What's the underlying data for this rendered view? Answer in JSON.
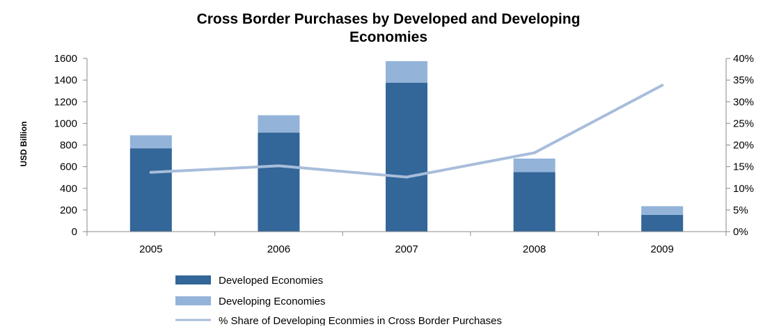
{
  "chart_data": {
    "type": "bar",
    "stacked": true,
    "title_line1": "Cross Border Purchases by Developed and Developing",
    "title_line2": "Economies",
    "ylabel": "USD Billion",
    "categories": [
      "2005",
      "2006",
      "2007",
      "2008",
      "2009"
    ],
    "ylim": [
      0,
      1600
    ],
    "yticks": [
      "0",
      "200",
      "400",
      "600",
      "800",
      "1000",
      "1200",
      "1400",
      "1600"
    ],
    "y2lim": [
      0,
      40
    ],
    "y2ticks": [
      "0%",
      "5%",
      "10%",
      "15%",
      "20%",
      "25%",
      "30%",
      "35%",
      "40%"
    ],
    "series": [
      {
        "name": "Developed Economies",
        "type": "bar",
        "axis": "left",
        "values": [
          770,
          915,
          1375,
          550,
          155
        ],
        "color": "#336699"
      },
      {
        "name": "Developing Economies",
        "type": "bar",
        "axis": "left",
        "values": [
          120,
          160,
          200,
          125,
          80
        ],
        "color": "#93B3D9"
      },
      {
        "name": "% Share of Developing Econmies in Cross Border Purchases",
        "type": "line",
        "axis": "right",
        "values": [
          13.7,
          15.2,
          12.6,
          18.2,
          33.8
        ],
        "color": "#A8BDDB"
      }
    ],
    "grid": false,
    "legend_position": "bottom"
  }
}
